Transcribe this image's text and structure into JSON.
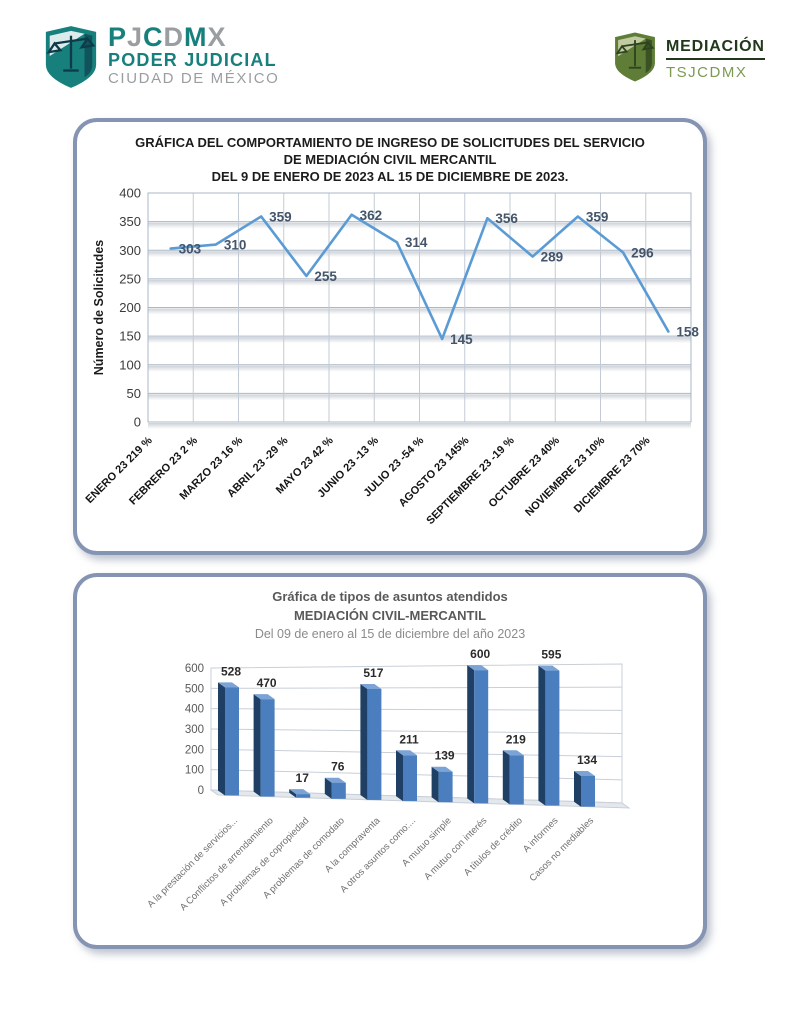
{
  "header": {
    "left_logo": {
      "letters": [
        {
          "ch": "P",
          "color": "#17807d"
        },
        {
          "ch": "J",
          "color": "#9b9ea1"
        },
        {
          "ch": "C",
          "color": "#17807d"
        },
        {
          "ch": "D",
          "color": "#9b9ea1"
        },
        {
          "ch": "M",
          "color": "#17807d"
        },
        {
          "ch": "X",
          "color": "#9b9ea1"
        }
      ],
      "line1": "PODER JUDICIAL",
      "line2": "CIUDAD DE MÉXICO",
      "shield_color": "#17807d",
      "shield_accent": "#0e3a4a"
    },
    "right_logo": {
      "title": "MEDIACIÓN",
      "subtitle": "TSJCDMX",
      "shield_color": "#5f7d37",
      "shield_accent": "#2e431f"
    }
  },
  "chart_data": [
    {
      "type": "line",
      "title_lines": [
        "GRÁFICA DEL COMPORTAMIENTO DE  INGRESO DE SOLICITUDES DEL SERVICIO",
        "DE MEDIACIÓN CIVIL  MERCANTIL",
        "DEL  9 DE ENERO DE 2023   AL  15  DE DICIEMBRE DE 2023."
      ],
      "ylabel": "Número de Solicitudes",
      "ylim": [
        0,
        400
      ],
      "ytick_step": 50,
      "grid": true,
      "legend": "none",
      "categories": [
        "ENERO 23  219 %",
        "FEBRERO  23  2 %",
        "MARZO  23  16 %",
        "ABRIL 23  -29 %",
        "MAYO  23  42 %",
        "JUNIO  23  -13 %",
        "JULIO 23  -54 %",
        "AGOSTO  23  145%",
        "SEPTIEMBRE  23  -19 %",
        "OCTUBRE  23  40%",
        "NOVIEMBRE  23  10%",
        "DICIEMBRE  23  70%"
      ],
      "values": [
        303,
        310,
        359,
        255,
        362,
        314,
        145,
        356,
        289,
        359,
        296,
        158
      ],
      "line_color": "#5b9bd5",
      "label_color": "#44546a"
    },
    {
      "type": "bar",
      "style": "3d-column",
      "title": "Gráfica de tipos de asuntos atendidos",
      "subtitle": "MEDIACIÓN CIVIL-MERCANTIL",
      "period": "Del 09 de enero al 15 de diciembre del año 2023",
      "ylim": [
        0,
        600
      ],
      "ytick_step": 100,
      "grid": true,
      "legend": "none",
      "categories": [
        "A la prestación de servicios...",
        "A Conflictos de arrendamiento",
        "A problemas de copropiedad",
        "A problemas de comodato",
        "A la compraventa",
        "A otros asuntos como:...",
        "A mutuo simple",
        "A mutuo con interés",
        "A títulos de crédito",
        "A informes",
        "Casos no mediables"
      ],
      "values": [
        528,
        470,
        17,
        76,
        517,
        211,
        139,
        600,
        219,
        595,
        134
      ],
      "bar_front_color": "#4a7ebe",
      "bar_side_color": "#1f4064",
      "bar_top_color": "#7ba3d6",
      "value_label_color": "#2b2b2b"
    }
  ]
}
